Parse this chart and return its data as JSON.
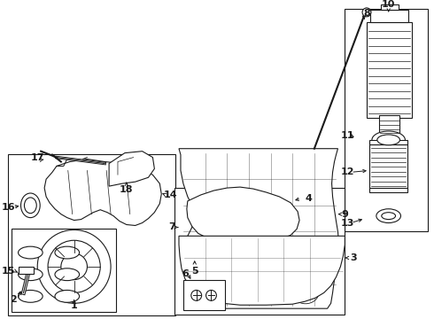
{
  "background_color": "#ffffff",
  "line_color": "#1a1a1a",
  "lw": 0.8,
  "fig_w": 4.9,
  "fig_h": 3.6,
  "dpi": 100
}
